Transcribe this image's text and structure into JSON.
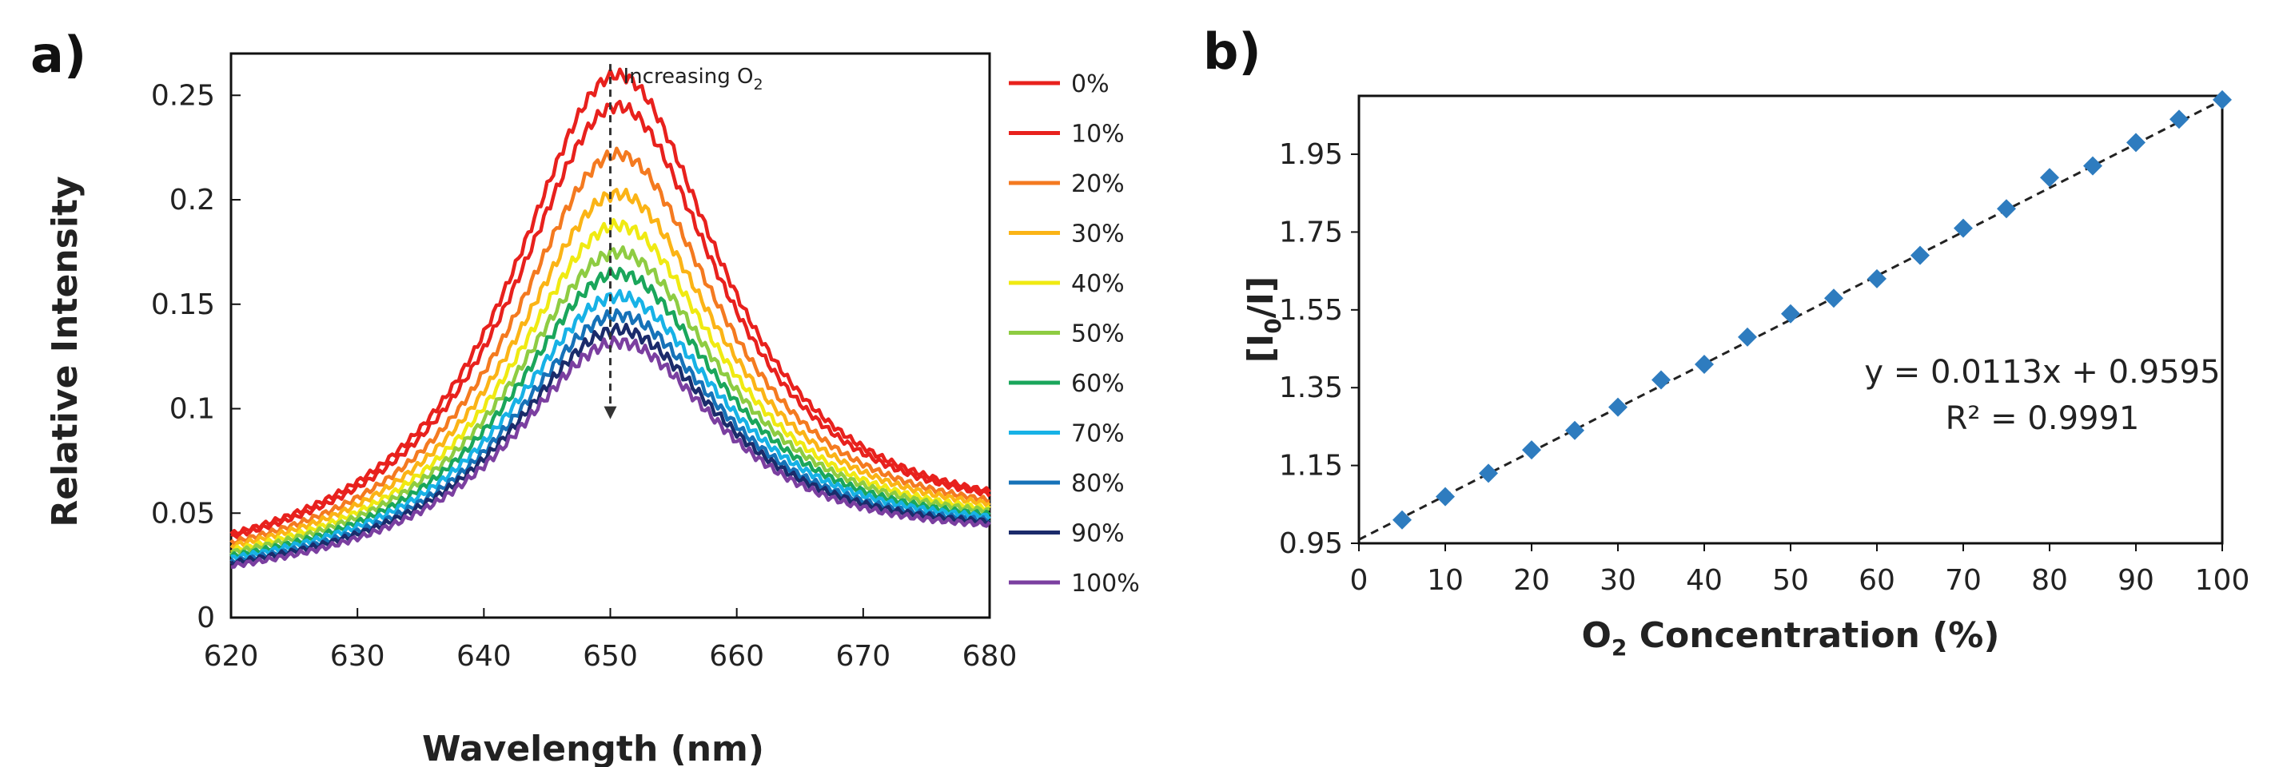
{
  "panels": {
    "a": "a)",
    "b": "b)"
  },
  "chart_data": [
    {
      "type": "line",
      "xlabel": "Wavelength (nm)",
      "ylabel": "Relative Intensity",
      "xlim": [
        620,
        680
      ],
      "ylim": [
        0,
        0.27
      ],
      "xticks": [
        "620",
        "630",
        "640",
        "650",
        "660",
        "670",
        "680"
      ],
      "yticks": [
        "0",
        "0.05",
        "0.1",
        "0.15",
        "0.2",
        "0.25"
      ],
      "annotation": {
        "text": "Increasing O",
        "sub": "2",
        "x": 650,
        "y_from": 0.265,
        "y_to": 0.095
      },
      "peak_center": 650.5,
      "series": [
        {
          "name": "0%",
          "peak": 0.25,
          "base": 0.021,
          "color": "#e8211d"
        },
        {
          "name": "10%",
          "peak": 0.235,
          "base": 0.021,
          "color": "#e8211d"
        },
        {
          "name": "20%",
          "peak": 0.212,
          "base": 0.02,
          "color": "#f47a20"
        },
        {
          "name": "30%",
          "peak": 0.193,
          "base": 0.02,
          "color": "#fbb416"
        },
        {
          "name": "40%",
          "peak": 0.178,
          "base": 0.019,
          "color": "#f0ea12"
        },
        {
          "name": "50%",
          "peak": 0.165,
          "base": 0.019,
          "color": "#8ecc42"
        },
        {
          "name": "60%",
          "peak": 0.155,
          "base": 0.018,
          "color": "#1aa65b"
        },
        {
          "name": "70%",
          "peak": 0.144,
          "base": 0.018,
          "color": "#17b2e6"
        },
        {
          "name": "80%",
          "peak": 0.135,
          "base": 0.017,
          "color": "#1672b8"
        },
        {
          "name": "90%",
          "peak": 0.128,
          "base": 0.017,
          "color": "#1b2b6b"
        },
        {
          "name": "100%",
          "peak": 0.122,
          "base": 0.016,
          "color": "#7b3fa0"
        }
      ]
    },
    {
      "type": "scatter",
      "xlabel": "O2 Concentration (%)",
      "xlabel_parts": {
        "pre": "O",
        "sub": "2",
        "post": " Concentration (%)"
      },
      "ylabel": "[I0/I]",
      "ylabel_parts": {
        "pre": "[I",
        "sub": "0",
        "post": "/I]"
      },
      "xlim": [
        0,
        100
      ],
      "ylim": [
        0.95,
        2.1
      ],
      "xticks": [
        "0",
        "10",
        "20",
        "30",
        "40",
        "50",
        "60",
        "70",
        "80",
        "90",
        "100"
      ],
      "yticks": [
        "0.95",
        "1.15",
        "1.35",
        "1.55",
        "1.75",
        "1.95"
      ],
      "x": [
        5,
        10,
        15,
        20,
        25,
        30,
        35,
        40,
        45,
        50,
        55,
        60,
        65,
        70,
        75,
        80,
        85,
        90,
        95,
        100
      ],
      "y": [
        1.01,
        1.07,
        1.13,
        1.19,
        1.24,
        1.3,
        1.37,
        1.41,
        1.48,
        1.54,
        1.58,
        1.63,
        1.69,
        1.76,
        1.81,
        1.89,
        1.92,
        1.98,
        2.04,
        2.09
      ],
      "fit": {
        "slope": 0.0113,
        "intercept": 0.9595,
        "equation": "y = 0.0113x + 0.9595",
        "r2": "R² = 0.9991"
      },
      "marker_color": "#2e7cbf"
    }
  ]
}
